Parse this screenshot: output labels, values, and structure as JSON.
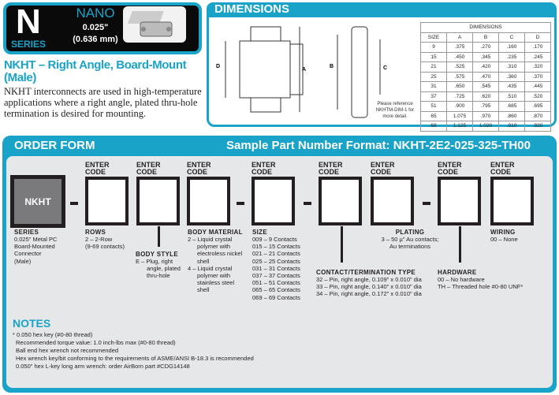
{
  "badge": {
    "letter": "N",
    "series": "SERIES",
    "nano": "NANO",
    "pitch_in": "0.025\"",
    "pitch_mm": "(0.636 mm)"
  },
  "product": {
    "title": "NKHT – Right Angle, Board-Mount (Male)",
    "description": "NKHT interconnects are used in high-temperature applications where a right angle, plated thru-hole termination is desired for mounting."
  },
  "dimensions": {
    "title": "DIMENSIONS",
    "labels": [
      "A",
      "B",
      "C",
      "D"
    ],
    "table_title": "DIMENSIONS",
    "columns": [
      "SIZE",
      "A",
      "B",
      "C",
      "D"
    ],
    "rows": [
      [
        "9",
        ".375",
        ".270",
        ".160",
        ".170"
      ],
      [
        "15",
        ".450",
        ".345",
        ".235",
        ".245"
      ],
      [
        "21",
        ".525",
        ".420",
        ".310",
        ".320"
      ],
      [
        "25",
        ".575",
        ".470",
        ".360",
        ".370"
      ],
      [
        "31",
        ".650",
        ".545",
        ".435",
        ".445"
      ],
      [
        "37",
        ".725",
        ".620",
        ".510",
        ".520"
      ],
      [
        "51",
        ".900",
        ".795",
        ".685",
        ".695"
      ],
      [
        "65",
        "1.075",
        ".970",
        ".860",
        ".870"
      ],
      [
        "69",
        "1.125",
        "1.020",
        ".910",
        ".920"
      ]
    ],
    "reference": "Please reference NKHTM-DIM-1 for more detail."
  },
  "order_form": {
    "title": "ORDER FORM",
    "sample": "Sample Part Number Format: NKHT-2E2-025-325-TH00",
    "prefix": "NKHT",
    "enter": "ENTER",
    "code": "CODE",
    "fields": {
      "series": {
        "title": "SERIES",
        "lines": [
          "0.025\" Metal PC",
          "Board-Mounted",
          "Connector",
          "(Male)"
        ]
      },
      "rows": {
        "title": "ROWS",
        "lines": [
          "2 – 2-Row",
          "(9-69 contacts)"
        ]
      },
      "body_style": {
        "title": "BODY STYLE",
        "lines": [
          "E – Plug, right",
          "angle, plated",
          "thru-hole"
        ]
      },
      "body_material": {
        "title": "BODY MATERIAL",
        "lines": [
          "2 – Liquid crystal",
          "polymer with",
          "electroless nickel",
          "shell",
          "4 – Liquid crystal",
          "polymer with",
          "stainless steel",
          "shell"
        ]
      },
      "size": {
        "title": "SIZE",
        "lines": [
          "009 – 9 Contacts",
          "015 – 15 Contacts",
          "021 – 21 Contacts",
          "025 – 25 Contacts",
          "031 – 31 Contacts",
          "037 – 37 Contacts",
          "051 – 51 Contacts",
          "065 – 65 Contacts",
          "069 – 69 Contacts"
        ]
      },
      "contact": {
        "title": "CONTACT/TERMINATION TYPE",
        "lines": [
          "32 – Pin, right angle, 0.109\" x 0.010\" dia",
          "33 – Pin, right angle, 0.140\" x 0.010\" dia",
          "34 – Pin, right angle, 0.172\" x 0.010\" dia"
        ]
      },
      "plating": {
        "title": "PLATING",
        "lines": [
          "3 – 50 µ\" Au contacts;",
          "Au terminations"
        ]
      },
      "hardware": {
        "title": "HARDWARE",
        "lines": [
          "00 – No hardware",
          "TH – Threaded hole #0-80 UNF*"
        ]
      },
      "wiring": {
        "title": "WIRING",
        "lines": [
          "00 – None"
        ]
      }
    }
  },
  "notes": {
    "title": "NOTES",
    "lines": [
      "* 0.050 hex key (#0-80 thread)",
      "Recommended torque value: 1.0 inch-lbs max (#0-80 thread)",
      "Ball end hex wrench not recommended",
      "Hex wrench key/bit conforming to the requirements of ASME/ANSI B-18.3 is recommended",
      "0.050\" hex L-key long arm wrench: order AirBorn part #CDG14148"
    ]
  },
  "colors": {
    "accent": "#1aa3c8",
    "panel": "#e6e7e8",
    "prefix_box": "#7a797b"
  }
}
